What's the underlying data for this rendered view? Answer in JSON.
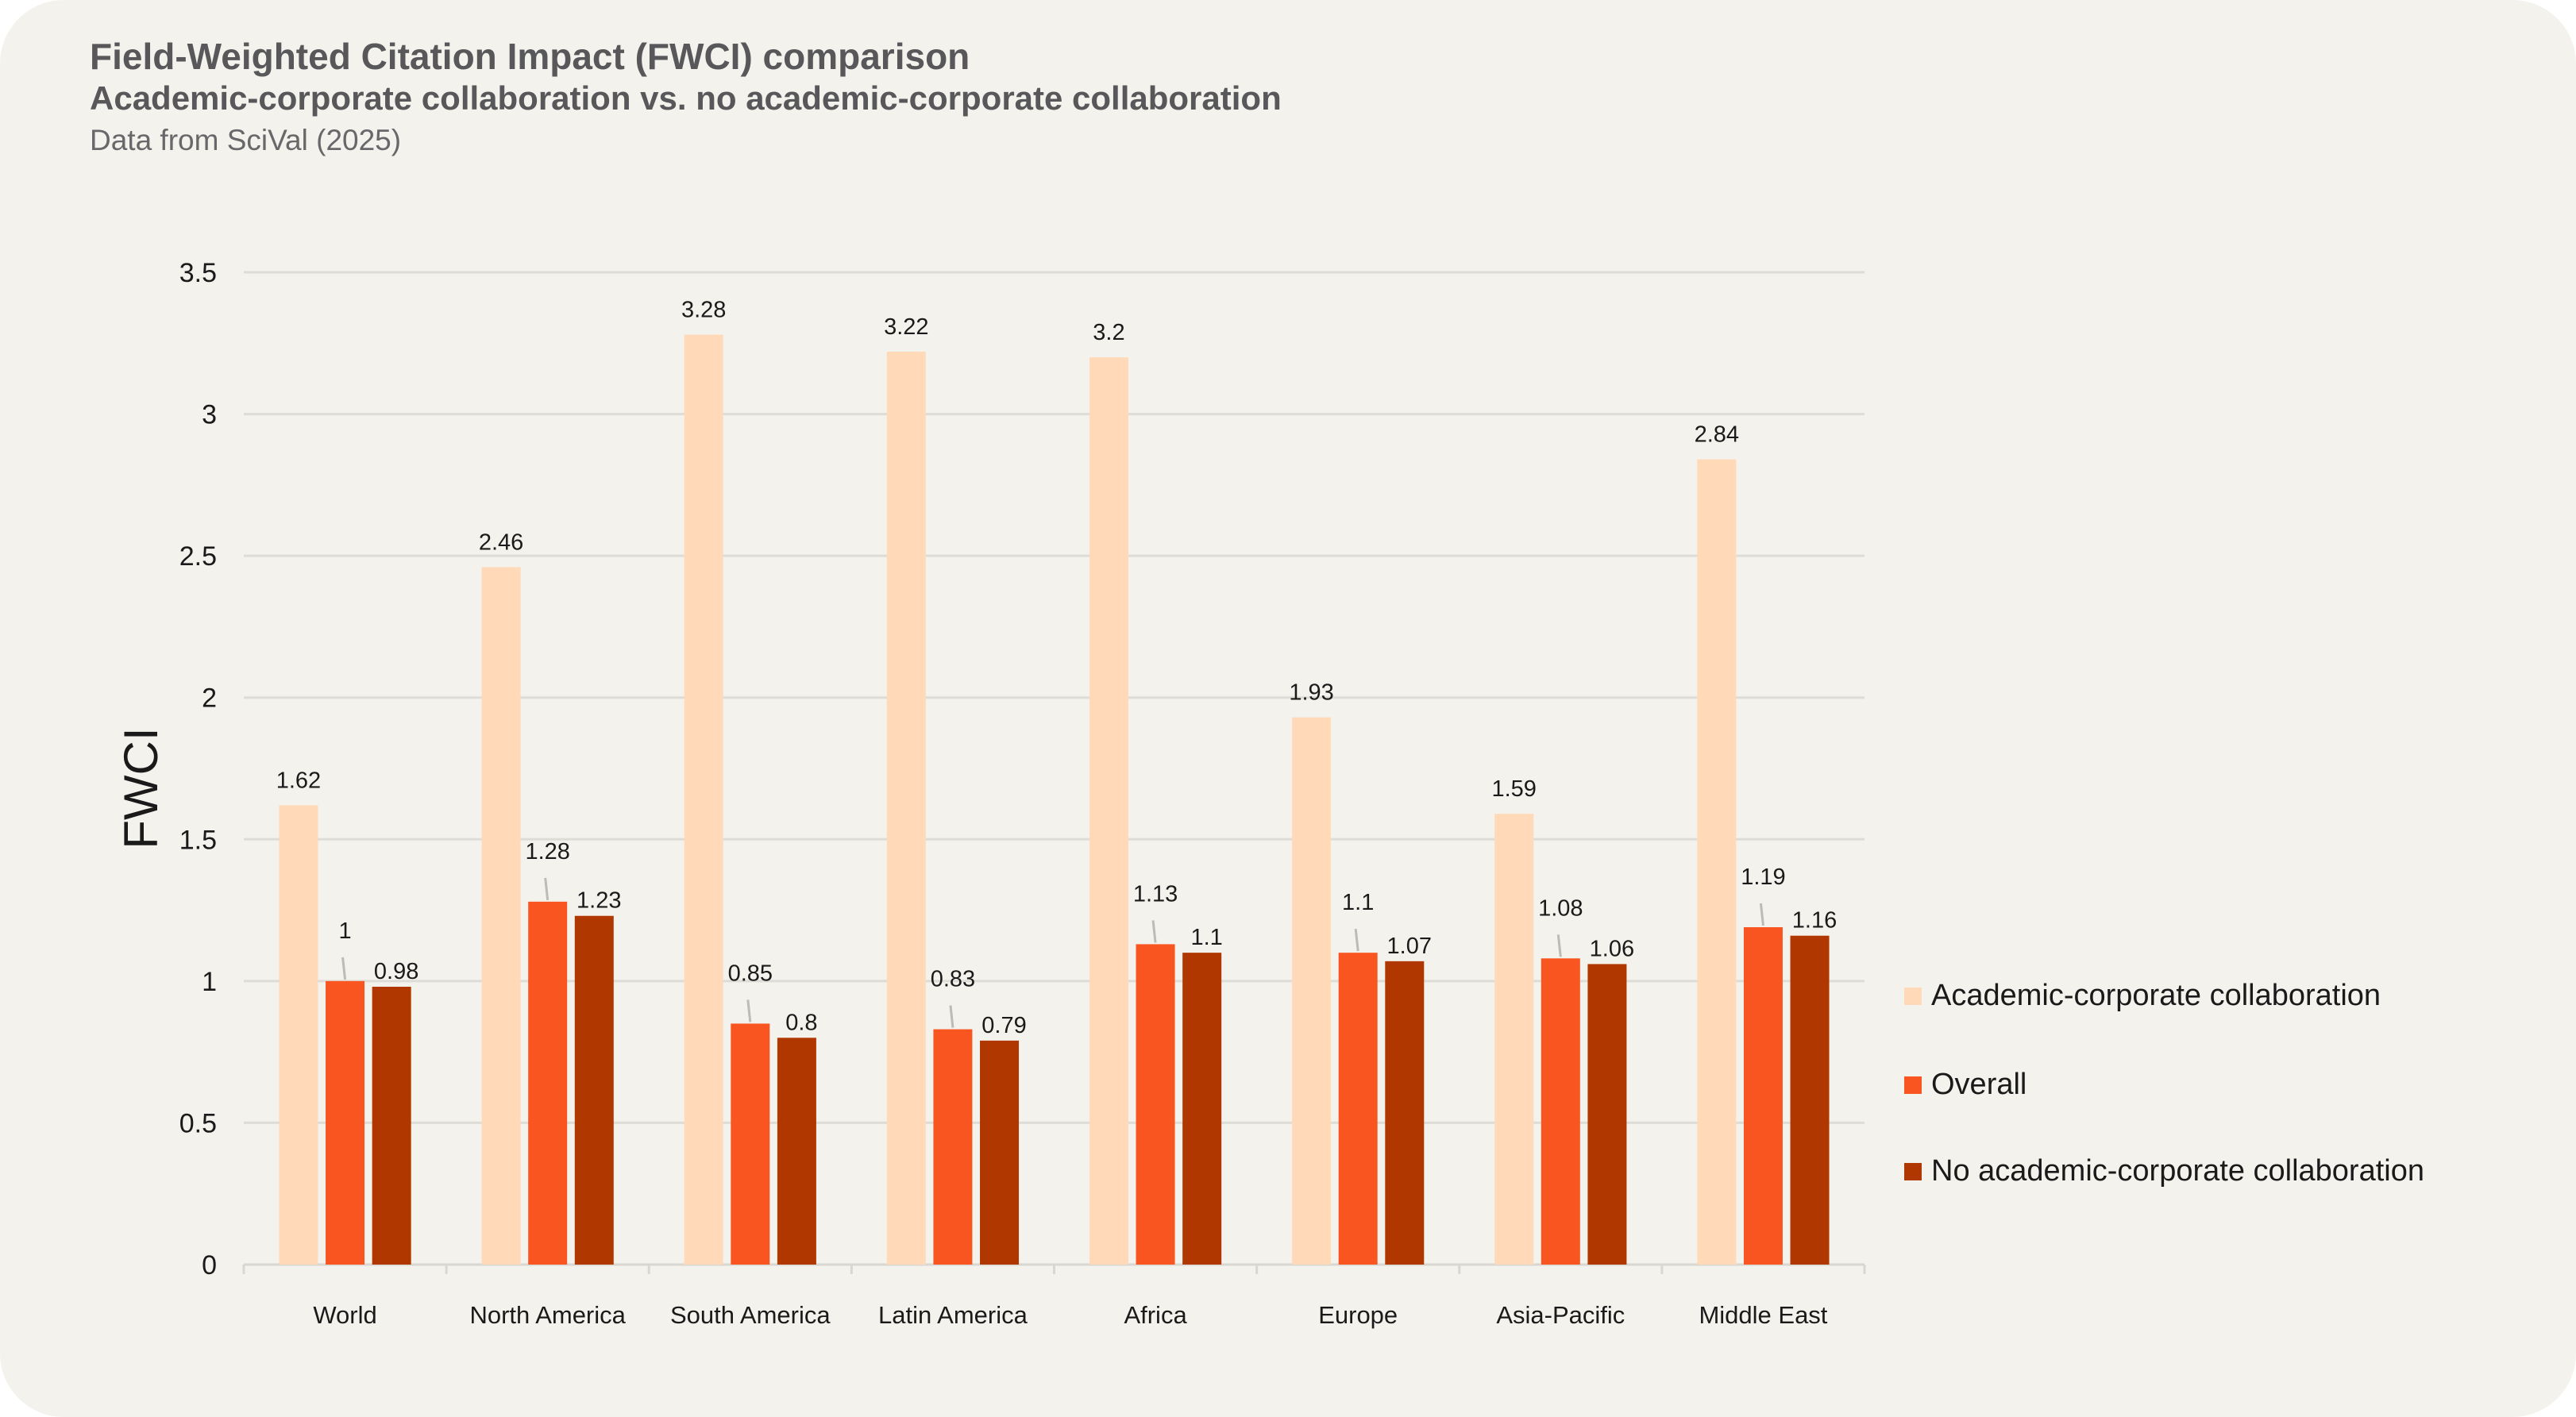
{
  "header": {
    "title": "Field-Weighted Citation Impact (FWCI) comparison",
    "subtitle": "Academic-corporate collaboration vs. no academic-corporate collaboration",
    "source": "Data from SciVal (2025)"
  },
  "chart_data": {
    "type": "bar",
    "title": "Field-Weighted Citation Impact (FWCI) comparison",
    "ylabel": "FWCI",
    "xlabel": "",
    "ylim": [
      0,
      3.5
    ],
    "yticks": [
      "0",
      "0.5",
      "1",
      "1.5",
      "2",
      "2.5",
      "3",
      "3.5"
    ],
    "grid": true,
    "legend_position": "right",
    "categories": [
      "World",
      "North America",
      "South America",
      "Latin America",
      "Africa",
      "Europe",
      "Asia-Pacific",
      "Middle East"
    ],
    "series": [
      {
        "name": "Academic-corporate collaboration",
        "color": "#ffd9b8",
        "values": [
          1.62,
          2.46,
          3.28,
          3.22,
          3.2,
          1.93,
          1.59,
          2.84
        ]
      },
      {
        "name": "Overall",
        "color": "#f95520",
        "values": [
          1,
          1.28,
          0.85,
          0.83,
          1.13,
          1.1,
          1.08,
          1.19
        ]
      },
      {
        "name": "No academic-corporate collaboration",
        "color": "#b03800",
        "values": [
          0.98,
          1.23,
          0.8,
          0.79,
          1.1,
          1.07,
          1.06,
          1.16
        ]
      }
    ]
  }
}
